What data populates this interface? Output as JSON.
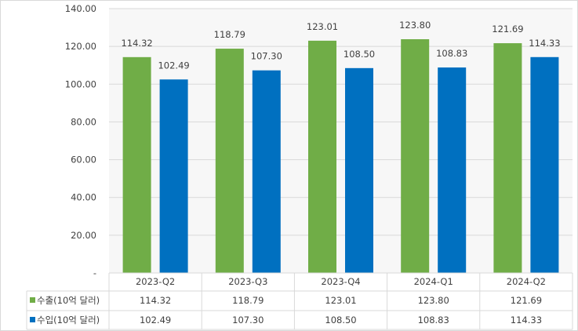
{
  "chart_data": {
    "type": "bar",
    "categories": [
      "2023-Q2",
      "2023-Q3",
      "2023-Q4",
      "2024-Q1",
      "2024-Q2"
    ],
    "series": [
      {
        "name": "수출(10억 달러)",
        "color": "#70ad47",
        "values": [
          114.32,
          118.79,
          123.01,
          123.8,
          121.69
        ],
        "labels": [
          "114.32",
          "118.79",
          "123.01",
          "123.80",
          "121.69"
        ]
      },
      {
        "name": "수입(10억 달러)",
        "color": "#0070c0",
        "values": [
          102.49,
          107.3,
          108.5,
          108.83,
          114.33
        ],
        "labels": [
          "102.49",
          "107.30",
          "108.50",
          "108.83",
          "114.33"
        ]
      }
    ],
    "ylim": [
      0,
      140
    ],
    "yticks": [
      0,
      20,
      40,
      60,
      80,
      100,
      120,
      140
    ],
    "ytick_labels": [
      "-",
      "20.00",
      "40.00",
      "60.00",
      "80.00",
      "100.00",
      "120.00",
      "140.00"
    ],
    "title": "",
    "xlabel": "",
    "ylabel": "",
    "grid": true,
    "legend": "data-table"
  }
}
